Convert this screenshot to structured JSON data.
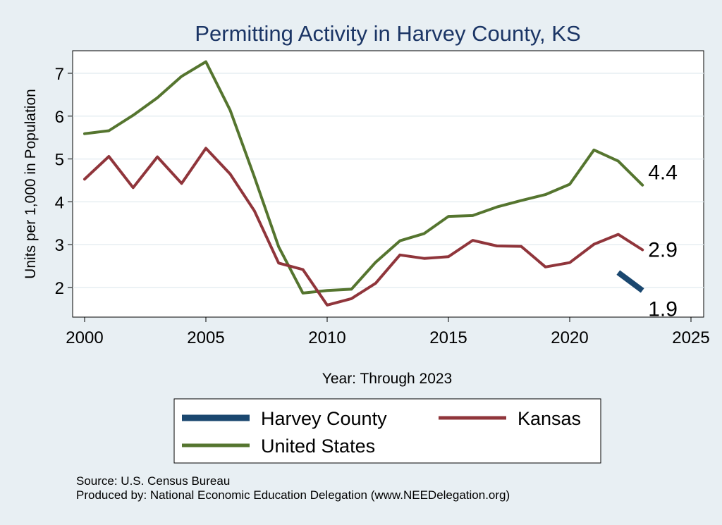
{
  "chart_data": {
    "type": "line",
    "title": "Permitting Activity in Harvey County, KS",
    "xlabel": "Year: Through 2023",
    "ylabel": "Units per 1,000 in Population",
    "xlim": [
      2000,
      2025
    ],
    "ylim": [
      1.35,
      7.45
    ],
    "xticks": [
      2000,
      2005,
      2010,
      2015,
      2020,
      2025
    ],
    "yticks": [
      2,
      3,
      4,
      5,
      6,
      7
    ],
    "grid": true,
    "legend_position": "bottom",
    "series": [
      {
        "name": "Harvey County",
        "color": "#1a476f",
        "width": 8,
        "x": [
          2022,
          2023
        ],
        "values": [
          2.35,
          1.93
        ],
        "end_label": "1.9"
      },
      {
        "name": "Kansas",
        "color": "#90353b",
        "width": 4,
        "x": [
          2000,
          2001,
          2002,
          2003,
          2004,
          2005,
          2006,
          2007,
          2008,
          2009,
          2010,
          2011,
          2012,
          2013,
          2014,
          2015,
          2016,
          2017,
          2018,
          2019,
          2020,
          2021,
          2022,
          2023
        ],
        "values": [
          4.53,
          5.06,
          4.33,
          5.05,
          4.43,
          5.25,
          4.65,
          3.79,
          2.57,
          2.42,
          1.59,
          1.74,
          2.1,
          2.76,
          2.68,
          2.72,
          3.1,
          2.97,
          2.96,
          2.48,
          2.58,
          3.01,
          3.24,
          2.88
        ],
        "end_label": "2.9"
      },
      {
        "name": "United States",
        "color": "#55752f",
        "width": 4,
        "x": [
          2000,
          2001,
          2002,
          2003,
          2004,
          2005,
          2006,
          2007,
          2008,
          2009,
          2010,
          2011,
          2012,
          2013,
          2014,
          2015,
          2016,
          2017,
          2018,
          2019,
          2020,
          2021,
          2022,
          2023
        ],
        "values": [
          5.59,
          5.66,
          6.02,
          6.43,
          6.93,
          7.27,
          6.14,
          4.58,
          2.95,
          1.87,
          1.93,
          1.96,
          2.59,
          3.09,
          3.26,
          3.66,
          3.68,
          3.88,
          4.03,
          4.17,
          4.41,
          5.21,
          4.95,
          4.39
        ],
        "end_label": "4.4"
      }
    ]
  },
  "legend": {
    "items": [
      {
        "label": "Harvey County",
        "color": "#1a476f"
      },
      {
        "label": "Kansas",
        "color": "#90353b"
      },
      {
        "label": "United States",
        "color": "#55752f"
      }
    ]
  },
  "footer": {
    "source": "Source: U.S. Census Bureau",
    "produced_by": "Produced by: National Economic Education Delegation (www.NEEDelegation.org)"
  }
}
